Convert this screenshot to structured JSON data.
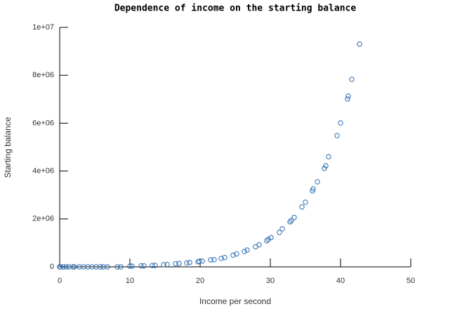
{
  "chart_data": {
    "type": "scatter",
    "title": "Dependence of income on the starting balance",
    "x_label": "Income per second",
    "y_label": "Starting balance",
    "color": "#2b6cb0",
    "xlim": [
      0,
      50
    ],
    "xticks": [
      0,
      10,
      20,
      30,
      40,
      50
    ],
    "ylim": [
      0,
      10000000
    ],
    "yticks": [
      0,
      {
        "value": 2000000,
        "label": "2e+06"
      },
      {
        "value": 4000000,
        "label": "4e+06"
      },
      {
        "value": 6000000,
        "label": "6e+06"
      },
      {
        "value": 8000000,
        "label": "8e+06"
      },
      {
        "value": 10000000,
        "label": "1e+07"
      }
    ],
    "x": [
      0,
      0.1,
      0.5,
      0.9,
      1.3,
      1.9,
      2.1,
      2.8,
      3.4,
      4,
      4.6,
      5.2,
      5.8,
      6.2,
      6.8,
      8.2,
      8.7,
      10,
      10.3,
      11.6,
      12,
      13.2,
      13.6,
      14.8,
      15.3,
      16.5,
      17,
      18.1,
      18.5,
      19.7,
      19.9,
      20.3,
      21.5,
      22,
      23,
      23.5,
      24.7,
      25.2,
      26.3,
      26.7,
      27.9,
      28.4,
      29.5,
      29.7,
      30.1,
      31.3,
      31.7,
      32.8,
      33,
      33.4,
      34.5,
      35,
      36,
      36.1,
      36.7,
      37.7,
      37.9,
      38.3,
      39.5,
      40,
      41,
      41.1,
      41.6,
      42.7
    ],
    "values": [
      0,
      0,
      0,
      0,
      0,
      0,
      0,
      0,
      0,
      0,
      0,
      0,
      0,
      0,
      0,
      0,
      0,
      30000,
      30000,
      40000,
      40000,
      60000,
      60000,
      90000,
      100000,
      130000,
      140000,
      160000,
      180000,
      210000,
      230000,
      240000,
      290000,
      300000,
      350000,
      390000,
      490000,
      540000,
      640000,
      700000,
      840000,
      920000,
      1090000,
      1150000,
      1220000,
      1440000,
      1590000,
      1880000,
      1940000,
      2060000,
      2500000,
      2700000,
      3170000,
      3260000,
      3550000,
      4110000,
      4220000,
      4600000,
      5480000,
      6010000,
      7010000,
      7130000,
      7830000,
      9300000
    ]
  }
}
